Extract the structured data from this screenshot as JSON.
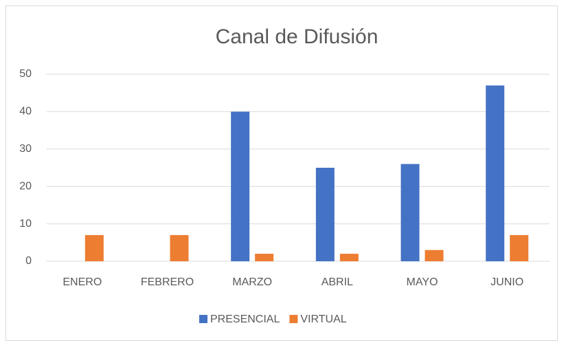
{
  "chart_data": {
    "type": "bar",
    "title": "Canal de Difusión",
    "categories": [
      "ENERO",
      "FEBRERO",
      "MARZO",
      "ABRIL",
      "MAYO",
      "JUNIO"
    ],
    "series": [
      {
        "name": "PRESENCIAL",
        "color": "#4472c4",
        "values": [
          0,
          0,
          40,
          25,
          26,
          47
        ]
      },
      {
        "name": "VIRTUAL",
        "color": "#ed7d31",
        "values": [
          7,
          7,
          2,
          2,
          3,
          7
        ]
      }
    ],
    "ylim": [
      0,
      50
    ],
    "yticks": [
      0,
      10,
      20,
      30,
      40,
      50
    ],
    "grid": true,
    "legend": "bottom"
  }
}
